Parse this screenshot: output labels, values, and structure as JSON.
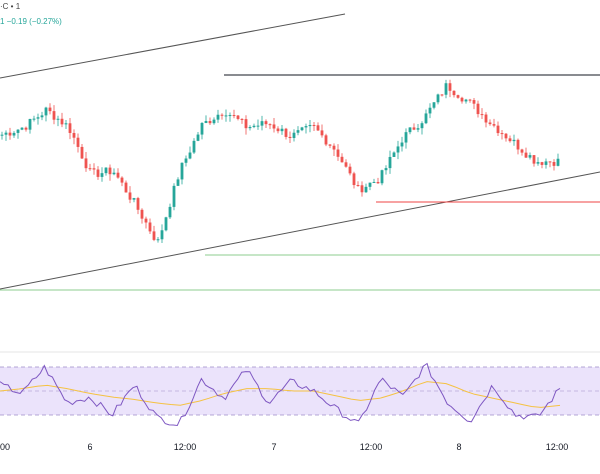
{
  "header": {
    "line1": "·C • 1",
    "line2": "1 −0.19 (−0.27%)"
  },
  "colors": {
    "up": "#26a69a",
    "down": "#ef5350",
    "channel": "#555555",
    "resistance": "#131722",
    "support": "#ef4444",
    "guide": "#66bb6a",
    "rsi": "#7e57c2",
    "rsi_ma": "#f5c242",
    "rsi_band": "#e9e0fa"
  },
  "chart_data": [
    {
      "type": "candlestick",
      "x_labels": [
        "00",
        "6",
        "12:00",
        "7",
        "12:00",
        "8",
        "12:00"
      ],
      "channel_lines": "ascending parallel channel",
      "horizontal_levels": [
        "resistance (black)",
        "support (red)",
        "guide (green)",
        "guide (green)"
      ],
      "price_path": [
        0.66,
        0.7,
        0.79,
        0.7,
        0.45,
        0.47,
        0.29,
        0.09,
        0.47,
        0.71,
        0.79,
        0.7,
        0.72,
        0.65,
        0.7,
        0.58,
        0.37,
        0.43,
        0.64,
        0.75,
        0.92,
        0.83,
        0.72,
        0.62,
        0.52,
        0.52
      ]
    },
    {
      "type": "line",
      "indicator": "RSI",
      "series": [
        {
          "values": [
            55,
            48,
            70,
            40,
            45,
            30,
            55,
            28,
            22,
            60,
            44,
            68,
            40,
            58,
            50,
            35,
            22,
            60,
            45,
            72,
            40,
            25,
            55,
            30,
            28,
            52
          ]
        },
        {
          "values": [
            50,
            52,
            55,
            52,
            48,
            45,
            43,
            40,
            38,
            42,
            48,
            52,
            52,
            50,
            50,
            46,
            42,
            44,
            50,
            58,
            56,
            48,
            44,
            40,
            36,
            38
          ]
        }
      ],
      "band": "30–70"
    }
  ]
}
